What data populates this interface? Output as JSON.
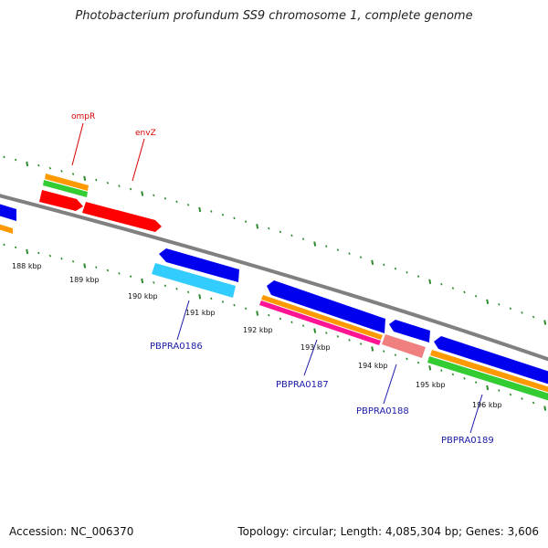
{
  "header": {
    "title": "Photobacterium profundum SS9 chromosome 1, complete genome"
  },
  "footer": {
    "accession": "Accession: NC_006370",
    "summary": "Topology: circular; Length: 4,085,304 bp; Genes: 3,606"
  },
  "colors": {
    "backbone": "#7f7f7f",
    "tick": "#2e8b2e",
    "red_gene": "#ff0000",
    "blue_gene": "#0000ee",
    "cyan_gene": "#33ccff",
    "orange_feature": "#ff9900",
    "green_feature": "#33cc33",
    "magenta_feature": "#ff1493",
    "pink_gene": "#f08080",
    "red_label": "#d40000",
    "blue_label": "#1a1aa8"
  },
  "kbp_labels": [
    "188 kbp",
    "189 kbp",
    "190 kbp",
    "191 kbp",
    "192 kbp",
    "193 kbp",
    "194 kbp",
    "195 kbp",
    "196 kbp"
  ],
  "gene_labels": {
    "ompR": "ompR",
    "envZ": "envZ",
    "PBPRA0186": "PBPRA0186",
    "PBPRA0187": "PBPRA0187",
    "PBPRA0188": "PBPRA0188",
    "PBPRA0189": "PBPRA0189"
  }
}
